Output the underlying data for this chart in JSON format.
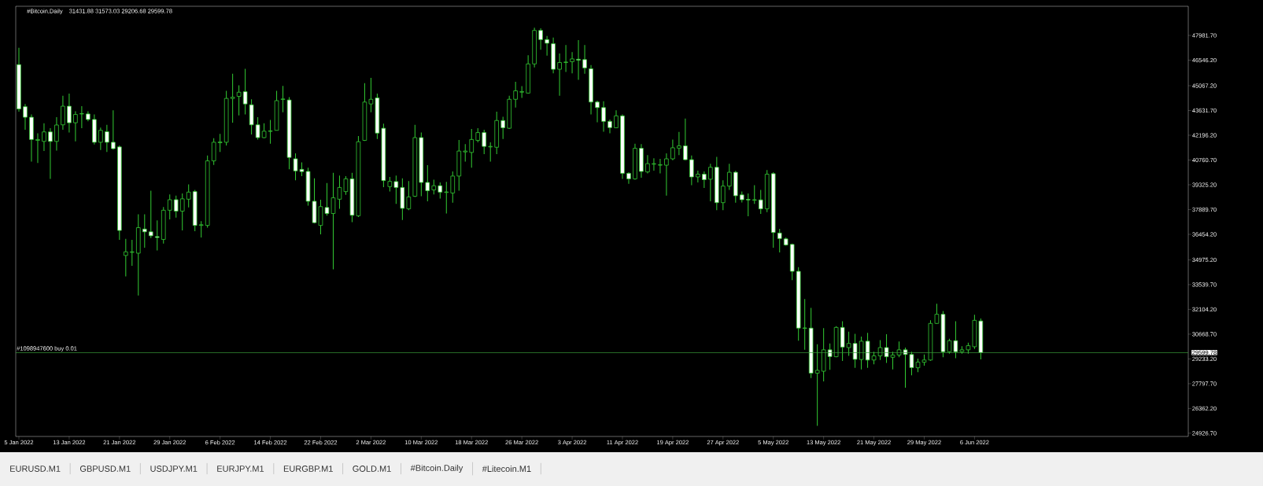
{
  "chart_data": {
    "type": "candlestick",
    "title": "#Bitcoin,Daily",
    "subtitle": "31431.88 31573.03 29206.68 29599.78",
    "x": [
      "2022-01-05",
      "2022-01-06",
      "2022-01-07",
      "2022-01-08",
      "2022-01-09",
      "2022-01-10",
      "2022-01-11",
      "2022-01-12",
      "2022-01-13",
      "2022-01-14",
      "2022-01-15",
      "2022-01-16",
      "2022-01-17",
      "2022-01-18",
      "2022-01-19",
      "2022-01-20",
      "2022-01-21",
      "2022-01-22",
      "2022-01-23",
      "2022-01-24",
      "2022-01-25",
      "2022-01-26",
      "2022-01-27",
      "2022-01-28",
      "2022-01-29",
      "2022-01-30",
      "2022-01-31",
      "2022-02-01",
      "2022-02-02",
      "2022-02-03",
      "2022-02-04",
      "2022-02-05",
      "2022-02-06",
      "2022-02-07",
      "2022-02-08",
      "2022-02-09",
      "2022-02-10",
      "2022-02-11",
      "2022-02-12",
      "2022-02-13",
      "2022-02-14",
      "2022-02-15",
      "2022-02-16",
      "2022-02-17",
      "2022-02-18",
      "2022-02-19",
      "2022-02-20",
      "2022-02-21",
      "2022-02-22",
      "2022-02-23",
      "2022-02-24",
      "2022-02-25",
      "2022-02-26",
      "2022-02-27",
      "2022-02-28",
      "2022-03-01",
      "2022-03-02",
      "2022-03-03",
      "2022-03-04",
      "2022-03-05",
      "2022-03-06",
      "2022-03-07",
      "2022-03-08",
      "2022-03-09",
      "2022-03-10",
      "2022-03-11",
      "2022-03-12",
      "2022-03-13",
      "2022-03-14",
      "2022-03-15",
      "2022-03-16",
      "2022-03-17",
      "2022-03-18",
      "2022-03-19",
      "2022-03-20",
      "2022-03-21",
      "2022-03-22",
      "2022-03-23",
      "2022-03-24",
      "2022-03-25",
      "2022-03-26",
      "2022-03-27",
      "2022-03-28",
      "2022-03-29",
      "2022-03-30",
      "2022-03-31",
      "2022-04-01",
      "2022-04-02",
      "2022-04-03",
      "2022-04-04",
      "2022-04-05",
      "2022-04-06",
      "2022-04-07",
      "2022-04-08",
      "2022-04-09",
      "2022-04-10",
      "2022-04-11",
      "2022-04-12",
      "2022-04-13",
      "2022-04-14",
      "2022-04-15",
      "2022-04-16",
      "2022-04-17",
      "2022-04-18",
      "2022-04-19",
      "2022-04-20",
      "2022-04-21",
      "2022-04-22",
      "2022-04-23",
      "2022-04-24",
      "2022-04-25",
      "2022-04-26",
      "2022-04-27",
      "2022-04-28",
      "2022-04-29",
      "2022-04-30",
      "2022-05-01",
      "2022-05-02",
      "2022-05-03",
      "2022-05-04",
      "2022-05-05",
      "2022-05-06",
      "2022-05-07",
      "2022-05-08",
      "2022-05-09",
      "2022-05-10",
      "2022-05-11",
      "2022-05-12",
      "2022-05-13",
      "2022-05-14",
      "2022-05-15",
      "2022-05-16",
      "2022-05-17",
      "2022-05-18",
      "2022-05-19",
      "2022-05-20",
      "2022-05-21",
      "2022-05-22",
      "2022-05-23",
      "2022-05-24",
      "2022-05-25",
      "2022-05-26",
      "2022-05-27",
      "2022-05-28",
      "2022-05-29",
      "2022-05-30",
      "2022-05-31",
      "2022-06-01",
      "2022-06-02",
      "2022-06-03",
      "2022-06-04",
      "2022-06-05",
      "2022-06-06",
      "2022-06-07"
    ],
    "xlim": [
      "2022-01-04T12:00",
      "2022-07-10"
    ],
    "xticks": [
      {
        "value": "2022-01-05",
        "label": "5 Jan 2022"
      },
      {
        "value": "2022-01-13",
        "label": "13 Jan 2022"
      },
      {
        "value": "2022-01-21",
        "label": "21 Jan 2022"
      },
      {
        "value": "2022-01-29",
        "label": "29 Jan 2022"
      },
      {
        "value": "2022-02-06",
        "label": "6 Feb 2022"
      },
      {
        "value": "2022-02-14",
        "label": "14 Feb 2022"
      },
      {
        "value": "2022-02-22",
        "label": "22 Feb 2022"
      },
      {
        "value": "2022-03-02",
        "label": "2 Mar 2022"
      },
      {
        "value": "2022-03-10",
        "label": "10 Mar 2022"
      },
      {
        "value": "2022-03-18",
        "label": "18 Mar 2022"
      },
      {
        "value": "2022-03-26",
        "label": "26 Mar 2022"
      },
      {
        "value": "2022-04-03",
        "label": "3 Apr 2022"
      },
      {
        "value": "2022-04-11",
        "label": "11 Apr 2022"
      },
      {
        "value": "2022-04-19",
        "label": "19 Apr 2022"
      },
      {
        "value": "2022-04-27",
        "label": "27 Apr 2022"
      },
      {
        "value": "2022-05-05",
        "label": "5 May 2022"
      },
      {
        "value": "2022-05-13",
        "label": "13 May 2022"
      },
      {
        "value": "2022-05-21",
        "label": "21 May 2022"
      },
      {
        "value": "2022-05-29",
        "label": "29 May 2022"
      },
      {
        "value": "2022-06-06",
        "label": "6 Jun 2022"
      }
    ],
    "ohlc": [
      [
        46290,
        47260,
        43560,
        43720
      ],
      [
        43850,
        44010,
        42520,
        43240
      ],
      [
        43240,
        43400,
        40670,
        41950
      ],
      [
        41900,
        42310,
        40590,
        41950
      ],
      [
        41840,
        42890,
        41280,
        42390
      ],
      [
        42390,
        42600,
        39670,
        41840
      ],
      [
        41840,
        43240,
        41310,
        42790
      ],
      [
        42800,
        44480,
        42520,
        43880
      ],
      [
        43880,
        44610,
        42350,
        42920
      ],
      [
        42920,
        43590,
        41840,
        43400
      ],
      [
        43430,
        43880,
        42600,
        43450
      ],
      [
        43430,
        43590,
        43000,
        43110
      ],
      [
        43110,
        43400,
        41660,
        41790
      ],
      [
        41790,
        42640,
        41340,
        42480
      ],
      [
        42400,
        42800,
        41230,
        41790
      ],
      [
        41790,
        43640,
        41360,
        41420
      ],
      [
        41520,
        41600,
        36130,
        36680
      ],
      [
        35230,
        36190,
        34020,
        35440
      ],
      [
        35410,
        36130,
        34630,
        35440
      ],
      [
        35360,
        37610,
        32910,
        36840
      ],
      [
        36760,
        37610,
        35680,
        36600
      ],
      [
        36600,
        38980,
        36240,
        36370
      ],
      [
        36320,
        37260,
        35520,
        36270
      ],
      [
        36160,
        38040,
        35920,
        37850
      ],
      [
        37850,
        38770,
        37320,
        38460
      ],
      [
        38460,
        38700,
        37420,
        37800
      ],
      [
        37800,
        38820,
        36680,
        38510
      ],
      [
        38490,
        39350,
        38010,
        38900
      ],
      [
        38930,
        39030,
        36640,
        36970
      ],
      [
        36970,
        37220,
        36270,
        37010
      ],
      [
        36970,
        41020,
        36840,
        40710
      ],
      [
        40710,
        42030,
        40470,
        41790
      ],
      [
        41760,
        42270,
        41230,
        41810
      ],
      [
        41790,
        44770,
        41600,
        44330
      ],
      [
        44330,
        45760,
        42920,
        44400
      ],
      [
        44450,
        45090,
        43350,
        44690
      ],
      [
        44720,
        46050,
        43400,
        44010
      ],
      [
        43960,
        44280,
        42240,
        42800
      ],
      [
        42800,
        43240,
        41950,
        42060
      ],
      [
        42060,
        42890,
        42030,
        42430
      ],
      [
        42420,
        43080,
        41710,
        42450
      ],
      [
        42480,
        44770,
        42470,
        44200
      ],
      [
        44270,
        45060,
        43530,
        44300
      ],
      [
        44240,
        44410,
        40220,
        40910
      ],
      [
        40830,
        41150,
        39590,
        40130
      ],
      [
        40220,
        40620,
        39830,
        40090
      ],
      [
        40100,
        40310,
        38120,
        38370
      ],
      [
        38370,
        39700,
        37090,
        37130
      ],
      [
        36970,
        38460,
        36450,
        38060
      ],
      [
        38010,
        39430,
        37530,
        37660
      ],
      [
        37660,
        40020,
        34430,
        38570
      ],
      [
        38490,
        39860,
        37930,
        39170
      ],
      [
        38930,
        39830,
        38740,
        39670
      ],
      [
        39670,
        40020,
        37160,
        37560
      ],
      [
        37530,
        42150,
        37450,
        41820
      ],
      [
        41900,
        45220,
        41870,
        44120
      ],
      [
        44010,
        45520,
        43530,
        44280
      ],
      [
        44360,
        44610,
        41980,
        42320
      ],
      [
        42600,
        42870,
        39190,
        39570
      ],
      [
        39220,
        39780,
        38940,
        39520
      ],
      [
        39510,
        39860,
        38220,
        39170
      ],
      [
        39170,
        39700,
        37290,
        37960
      ],
      [
        37930,
        39540,
        37850,
        38620
      ],
      [
        38660,
        42800,
        38620,
        42060
      ],
      [
        42060,
        42350,
        38660,
        39460
      ],
      [
        39460,
        40460,
        38370,
        38980
      ],
      [
        39030,
        39620,
        38770,
        39270
      ],
      [
        39270,
        39460,
        38530,
        38900
      ],
      [
        38880,
        39490,
        37660,
        38910
      ],
      [
        38850,
        40100,
        38290,
        39830
      ],
      [
        39830,
        41920,
        38980,
        41280
      ],
      [
        41230,
        41680,
        40670,
        41280
      ],
      [
        41200,
        42560,
        40310,
        41950
      ],
      [
        41900,
        42600,
        41790,
        42350
      ],
      [
        42350,
        42520,
        41100,
        41550
      ],
      [
        41520,
        41790,
        40670,
        41550
      ],
      [
        41500,
        43560,
        41100,
        43050
      ],
      [
        43050,
        43270,
        41980,
        42630
      ],
      [
        42600,
        44490,
        42560,
        44280
      ],
      [
        44280,
        45300,
        43800,
        44770
      ],
      [
        44690,
        45040,
        44360,
        44730
      ],
      [
        44640,
        46830,
        44610,
        46330
      ],
      [
        46330,
        48430,
        46130,
        48270
      ],
      [
        48270,
        48390,
        47150,
        47740
      ],
      [
        47740,
        47950,
        46810,
        47530
      ],
      [
        47500,
        47860,
        45780,
        46020
      ],
      [
        46020,
        46940,
        44480,
        46410
      ],
      [
        46410,
        47420,
        45860,
        46440
      ],
      [
        46460,
        47020,
        45780,
        46620
      ],
      [
        46600,
        47710,
        45410,
        46550
      ],
      [
        46580,
        47420,
        45760,
        46100
      ],
      [
        46050,
        46260,
        43400,
        44120
      ],
      [
        44120,
        44200,
        42950,
        43800
      ],
      [
        43800,
        44170,
        42400,
        43000
      ],
      [
        43000,
        43110,
        42310,
        42640
      ],
      [
        42630,
        43640,
        42600,
        43320
      ],
      [
        43320,
        43400,
        39670,
        39990
      ],
      [
        39990,
        40050,
        39380,
        39670
      ],
      [
        39670,
        41710,
        39620,
        41440
      ],
      [
        41440,
        41680,
        39730,
        40100
      ],
      [
        40070,
        41040,
        39990,
        40550
      ],
      [
        40520,
        40860,
        40150,
        40550
      ],
      [
        40460,
        40830,
        39990,
        40490
      ],
      [
        40460,
        41150,
        38700,
        40830
      ],
      [
        40830,
        41950,
        40750,
        41470
      ],
      [
        41450,
        42390,
        41040,
        41580
      ],
      [
        41580,
        43160,
        40750,
        40780
      ],
      [
        40780,
        41020,
        39300,
        39780
      ],
      [
        39780,
        40150,
        39460,
        39940
      ],
      [
        39940,
        40100,
        39140,
        39620
      ],
      [
        39650,
        40540,
        38370,
        40340
      ],
      [
        40340,
        40940,
        37850,
        38290
      ],
      [
        38290,
        39590,
        37850,
        39250
      ],
      [
        39250,
        40540,
        39030,
        40050
      ],
      [
        40050,
        40130,
        38290,
        38690
      ],
      [
        38740,
        38940,
        38300,
        38460
      ],
      [
        38480,
        38820,
        37500,
        38450
      ],
      [
        38430,
        39300,
        38220,
        38460
      ],
      [
        38450,
        39030,
        37640,
        37930
      ],
      [
        37930,
        40180,
        37740,
        39940
      ],
      [
        39970,
        40050,
        35680,
        36560
      ],
      [
        36530,
        36770,
        35410,
        36210
      ],
      [
        36190,
        36270,
        35790,
        35840
      ],
      [
        35870,
        35920,
        33800,
        34310
      ],
      [
        34310,
        34550,
        30290,
        31020
      ],
      [
        31000,
        32700,
        29760,
        31030
      ],
      [
        31020,
        32190,
        28120,
        28410
      ],
      [
        28410,
        30080,
        25350,
        28570
      ],
      [
        28520,
        31020,
        27930,
        29760
      ],
      [
        29760,
        30130,
        28600,
        29370
      ],
      [
        29360,
        31130,
        29330,
        31060
      ],
      [
        31060,
        31420,
        29120,
        29920
      ],
      [
        29890,
        30810,
        29410,
        30130
      ],
      [
        30130,
        30690,
        28720,
        29210
      ],
      [
        29200,
        30530,
        28630,
        30260
      ],
      [
        30260,
        30740,
        28720,
        29170
      ],
      [
        29170,
        29650,
        28920,
        29410
      ],
      [
        29410,
        30320,
        29170,
        29890
      ],
      [
        29890,
        30660,
        29000,
        29360
      ],
      [
        29330,
        29650,
        28630,
        29460
      ],
      [
        29460,
        30240,
        29330,
        29760
      ],
      [
        29760,
        29890,
        27560,
        29490
      ],
      [
        29490,
        29650,
        28280,
        28730
      ],
      [
        28720,
        29250,
        28470,
        29050
      ],
      [
        29040,
        29490,
        28840,
        29170
      ],
      [
        29170,
        31470,
        29130,
        31290
      ],
      [
        31290,
        32430,
        31260,
        31820
      ],
      [
        31820,
        32010,
        29330,
        29650
      ],
      [
        29650,
        30400,
        29540,
        30290
      ],
      [
        30290,
        31420,
        29280,
        29650
      ],
      [
        29650,
        29970,
        29540,
        29760
      ],
      [
        29760,
        30180,
        29540,
        30000
      ],
      [
        29940,
        31790,
        29810,
        31470
      ],
      [
        31431.88,
        31573.03,
        29206.68,
        29599.78
      ]
    ],
    "color": "#33cc33",
    "ylim": [
      24740,
      49670
    ],
    "yticks": [
      {
        "value": 47981.7,
        "label": "47981.70"
      },
      {
        "value": 46546.2,
        "label": "46546.20"
      },
      {
        "value": 45067.2,
        "label": "45067.20"
      },
      {
        "value": 43631.7,
        "label": "43631.70"
      },
      {
        "value": 42196.2,
        "label": "42196.20"
      },
      {
        "value": 40760.7,
        "label": "40760.70"
      },
      {
        "value": 39325.2,
        "label": "39325.20"
      },
      {
        "value": 37889.7,
        "label": "37889.70"
      },
      {
        "value": 36454.2,
        "label": "36454.20"
      },
      {
        "value": 34975.2,
        "label": "34975.20"
      },
      {
        "value": 33539.7,
        "label": "33539.70"
      },
      {
        "value": 32104.2,
        "label": "32104.20"
      },
      {
        "value": 30668.7,
        "label": "30668.70"
      },
      {
        "value": 29233.2,
        "label": "29233.20"
      },
      {
        "value": 27797.7,
        "label": "27797.70"
      },
      {
        "value": 26362.2,
        "label": "26362.20"
      },
      {
        "value": 24926.7,
        "label": "24926.70"
      }
    ],
    "ref_lines": [
      {
        "axis": "y",
        "value": 29599.78,
        "label": "29599.78",
        "color": "#3a9a3a"
      }
    ],
    "annotations": [
      {
        "text": "#1098947600 buy 0.01",
        "y": 29599.78
      },
      "EURUSD.M1",
      "GBPUSD.M1",
      "USDJPY.M1",
      "EURJPY.M1",
      "EURGBP.M1",
      "GOLD.M1",
      "#Bitcoin.Daily",
      "#Litecoin.M1"
    ]
  }
}
